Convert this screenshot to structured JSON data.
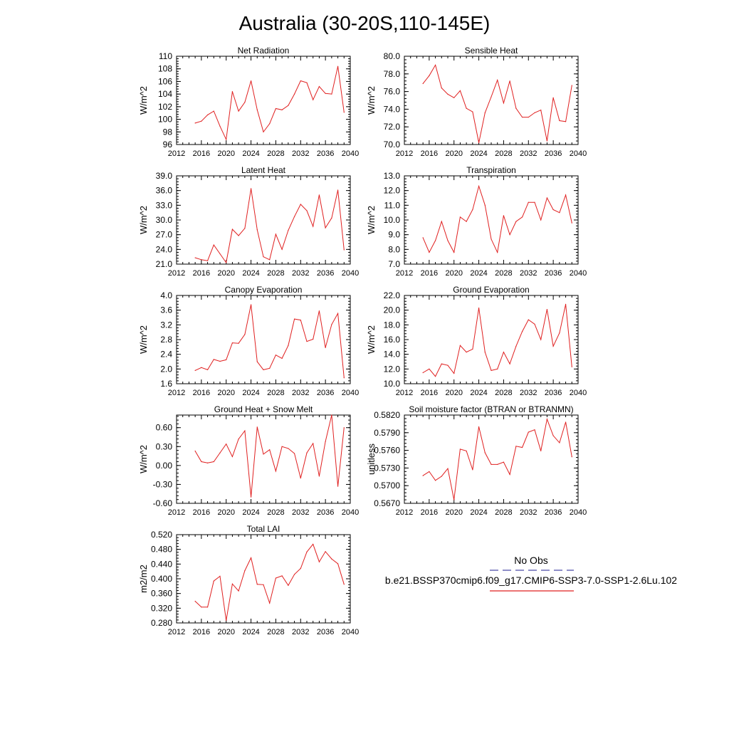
{
  "figure_title": "Australia (30-20S,110-145E)",
  "legend": {
    "obs_label": "No Obs",
    "obs_color": "#4a4aa8",
    "model_label": "b.e21.BSSP370cmip6.f09_g17.CMIP6-SSP3-7.0-SSP1-2.6Lu.102",
    "model_color": "#e02020"
  },
  "chart_data": [
    {
      "type": "line",
      "title": "Net Radiation",
      "ylabel": "W/m^2",
      "xlim": [
        2012,
        2040
      ],
      "xticks": [
        2012,
        2016,
        2020,
        2024,
        2028,
        2032,
        2036,
        2040
      ],
      "ylim": [
        96,
        110
      ],
      "yticks": [
        "96",
        "98",
        "100",
        "102",
        "104",
        "106",
        "108",
        "110"
      ],
      "x": [
        2015,
        2016,
        2017,
        2018,
        2019,
        2020,
        2021,
        2022,
        2023,
        2024,
        2025,
        2026,
        2027,
        2028,
        2029,
        2030,
        2031,
        2032,
        2033,
        2034,
        2035,
        2036,
        2037,
        2038,
        2039
      ],
      "values": [
        99.4,
        99.7,
        100.7,
        101.3,
        98.9,
        96.8,
        104.4,
        101.3,
        102.7,
        106.1,
        101.5,
        98.0,
        99.3,
        101.7,
        101.5,
        102.2,
        104.0,
        106.1,
        105.8,
        103.1,
        105.2,
        104.1,
        104.0,
        108.4,
        101.1
      ]
    },
    {
      "type": "line",
      "title": "Sensible Heat",
      "ylabel": "W/m^2",
      "xlim": [
        2012,
        2040
      ],
      "xticks": [
        2012,
        2016,
        2020,
        2024,
        2028,
        2032,
        2036,
        2040
      ],
      "ylim": [
        70,
        80
      ],
      "yticks": [
        "70.0",
        "72.0",
        "74.0",
        "76.0",
        "78.0",
        "80.0"
      ],
      "x": [
        2015,
        2016,
        2017,
        2018,
        2019,
        2020,
        2021,
        2022,
        2023,
        2024,
        2025,
        2026,
        2027,
        2028,
        2029,
        2030,
        2031,
        2032,
        2033,
        2034,
        2035,
        2036,
        2037,
        2038,
        2039
      ],
      "values": [
        76.9,
        77.8,
        79.0,
        76.4,
        75.7,
        75.3,
        76.1,
        74.1,
        73.7,
        70.2,
        73.6,
        75.4,
        77.3,
        74.7,
        77.2,
        74.1,
        73.1,
        73.1,
        73.6,
        73.9,
        70.4,
        75.3,
        72.7,
        72.6,
        76.7
      ]
    },
    {
      "type": "line",
      "title": "Latent Heat",
      "ylabel": "W/m^2",
      "xlim": [
        2012,
        2040
      ],
      "xticks": [
        2012,
        2016,
        2020,
        2024,
        2028,
        2032,
        2036,
        2040
      ],
      "ylim": [
        21,
        39
      ],
      "yticks": [
        "21.0",
        "24.0",
        "27.0",
        "30.0",
        "33.0",
        "36.0",
        "39.0"
      ],
      "x": [
        2015,
        2016,
        2017,
        2018,
        2019,
        2020,
        2021,
        2022,
        2023,
        2024,
        2025,
        2026,
        2027,
        2028,
        2029,
        2030,
        2031,
        2032,
        2033,
        2034,
        2035,
        2036,
        2037,
        2038,
        2039
      ],
      "values": [
        22.3,
        21.9,
        21.7,
        24.9,
        23.1,
        21.3,
        28.1,
        26.8,
        28.3,
        36.4,
        28.0,
        22.5,
        21.9,
        27.1,
        24.0,
        27.9,
        30.7,
        33.2,
        31.9,
        28.7,
        35.1,
        28.4,
        30.4,
        36.1,
        23.9
      ]
    },
    {
      "type": "line",
      "title": "Transpiration",
      "ylabel": "W/m^2",
      "xlim": [
        2012,
        2040
      ],
      "xticks": [
        2012,
        2016,
        2020,
        2024,
        2028,
        2032,
        2036,
        2040
      ],
      "ylim": [
        7,
        13
      ],
      "yticks": [
        "7.0",
        "8.0",
        "9.0",
        "10.0",
        "11.0",
        "12.0",
        "13.0"
      ],
      "x": [
        2015,
        2016,
        2017,
        2018,
        2019,
        2020,
        2021,
        2022,
        2023,
        2024,
        2025,
        2026,
        2027,
        2028,
        2029,
        2030,
        2031,
        2032,
        2033,
        2034,
        2035,
        2036,
        2037,
        2038,
        2039
      ],
      "values": [
        8.8,
        7.8,
        8.6,
        9.9,
        8.6,
        7.8,
        10.2,
        9.9,
        10.7,
        12.3,
        11.0,
        8.7,
        7.8,
        10.3,
        9.0,
        9.9,
        10.2,
        11.2,
        11.2,
        10.0,
        11.5,
        10.7,
        10.5,
        11.7,
        9.8
      ]
    },
    {
      "type": "line",
      "title": "Canopy Evaporation",
      "ylabel": "W/m^2",
      "xlim": [
        2012,
        2040
      ],
      "xticks": [
        2012,
        2016,
        2020,
        2024,
        2028,
        2032,
        2036,
        2040
      ],
      "ylim": [
        1.6,
        4.0
      ],
      "yticks": [
        "1.6",
        "2.0",
        "2.4",
        "2.8",
        "3.2",
        "3.6",
        "4.0"
      ],
      "x": [
        2015,
        2016,
        2017,
        2018,
        2019,
        2020,
        2021,
        2022,
        2023,
        2024,
        2025,
        2026,
        2027,
        2028,
        2029,
        2030,
        2031,
        2032,
        2033,
        2034,
        2035,
        2036,
        2037,
        2038,
        2039
      ],
      "values": [
        1.96,
        2.04,
        1.98,
        2.26,
        2.21,
        2.25,
        2.71,
        2.7,
        2.94,
        3.75,
        2.2,
        1.98,
        2.02,
        2.38,
        2.29,
        2.64,
        3.36,
        3.33,
        2.75,
        2.81,
        3.58,
        2.58,
        3.21,
        3.51,
        1.76
      ]
    },
    {
      "type": "line",
      "title": "Ground Evaporation",
      "ylabel": "W/m^2",
      "xlim": [
        2012,
        2040
      ],
      "xticks": [
        2012,
        2016,
        2020,
        2024,
        2028,
        2032,
        2036,
        2040
      ],
      "ylim": [
        10,
        22
      ],
      "yticks": [
        "10.0",
        "12.0",
        "14.0",
        "16.0",
        "18.0",
        "20.0",
        "22.0"
      ],
      "x": [
        2015,
        2016,
        2017,
        2018,
        2019,
        2020,
        2021,
        2022,
        2023,
        2024,
        2025,
        2026,
        2027,
        2028,
        2029,
        2030,
        2031,
        2032,
        2033,
        2034,
        2035,
        2036,
        2037,
        2038,
        2039
      ],
      "values": [
        11.5,
        12.0,
        11.0,
        12.7,
        12.5,
        11.4,
        15.2,
        14.3,
        14.7,
        20.3,
        14.3,
        11.8,
        12.0,
        14.3,
        12.7,
        15.1,
        17.1,
        18.7,
        18.1,
        16.0,
        20.1,
        15.1,
        16.9,
        20.8,
        12.3
      ]
    },
    {
      "type": "line",
      "title": "Ground Heat + Snow Melt",
      "ylabel": "W/m^2",
      "xlim": [
        2012,
        2040
      ],
      "xticks": [
        2012,
        2016,
        2020,
        2024,
        2028,
        2032,
        2036,
        2040
      ],
      "ylim": [
        -0.6,
        0.8
      ],
      "yticks": [
        "-0.60",
        "-0.30",
        "0.00",
        "0.30",
        "0.60"
      ],
      "ytick_values": [
        -0.6,
        -0.3,
        0.0,
        0.3,
        0.6
      ],
      "x": [
        2015,
        2016,
        2017,
        2018,
        2019,
        2020,
        2021,
        2022,
        2023,
        2024,
        2025,
        2026,
        2027,
        2028,
        2029,
        2030,
        2031,
        2032,
        2033,
        2034,
        2035,
        2036,
        2037,
        2038,
        2039
      ],
      "values": [
        0.23,
        0.06,
        0.04,
        0.06,
        0.2,
        0.34,
        0.14,
        0.42,
        0.55,
        -0.5,
        0.61,
        0.18,
        0.25,
        -0.09,
        0.3,
        0.27,
        0.19,
        -0.2,
        0.2,
        0.35,
        -0.17,
        0.38,
        0.8,
        -0.33,
        0.6
      ]
    },
    {
      "type": "line",
      "title": "Soil moisture factor (BTRAN or BTRANMN)",
      "ylabel": "unitless",
      "xlim": [
        2012,
        2040
      ],
      "xticks": [
        2012,
        2016,
        2020,
        2024,
        2028,
        2032,
        2036,
        2040
      ],
      "ylim": [
        0.567,
        0.582
      ],
      "yticks": [
        "0.5670",
        "0.5700",
        "0.5730",
        "0.5760",
        "0.5790",
        "0.5820"
      ],
      "x": [
        2015,
        2016,
        2017,
        2018,
        2019,
        2020,
        2021,
        2022,
        2023,
        2024,
        2025,
        2026,
        2027,
        2028,
        2029,
        2030,
        2031,
        2032,
        2033,
        2034,
        2035,
        2036,
        2037,
        2038,
        2039
      ],
      "values": [
        0.5717,
        0.5724,
        0.5709,
        0.5716,
        0.5729,
        0.5676,
        0.5762,
        0.5759,
        0.5727,
        0.58,
        0.5756,
        0.5736,
        0.5736,
        0.574,
        0.5719,
        0.5767,
        0.5765,
        0.5791,
        0.5795,
        0.5759,
        0.5813,
        0.5785,
        0.5773,
        0.5808,
        0.5749
      ]
    },
    {
      "type": "line",
      "title": "Total LAI",
      "ylabel": "m2/m2",
      "xlim": [
        2012,
        2040
      ],
      "xticks": [
        2012,
        2016,
        2020,
        2024,
        2028,
        2032,
        2036,
        2040
      ],
      "ylim": [
        0.28,
        0.52
      ],
      "yticks": [
        "0.280",
        "0.320",
        "0.360",
        "0.400",
        "0.440",
        "0.480",
        "0.520"
      ],
      "x": [
        2015,
        2016,
        2017,
        2018,
        2019,
        2020,
        2021,
        2022,
        2023,
        2024,
        2025,
        2026,
        2027,
        2028,
        2029,
        2030,
        2031,
        2032,
        2033,
        2034,
        2035,
        2036,
        2037,
        2038,
        2039
      ],
      "values": [
        0.339,
        0.323,
        0.323,
        0.394,
        0.407,
        0.287,
        0.386,
        0.367,
        0.422,
        0.457,
        0.385,
        0.384,
        0.334,
        0.402,
        0.408,
        0.382,
        0.412,
        0.428,
        0.473,
        0.494,
        0.446,
        0.474,
        0.454,
        0.441,
        0.385
      ]
    }
  ]
}
